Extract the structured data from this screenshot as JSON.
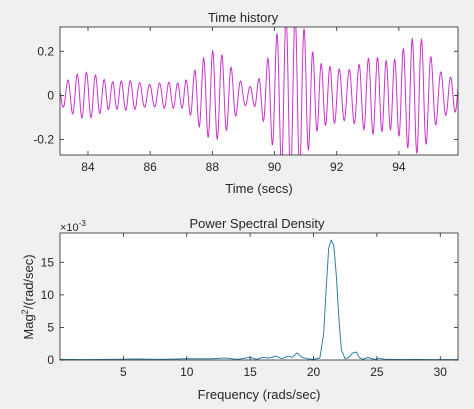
{
  "colors": {
    "time_series": "#cc33cc",
    "psd_series": "#2f7fa8",
    "axes_bg": "#ffffff",
    "figure_bg": "#f0f0f0"
  },
  "chart_data": [
    {
      "type": "line",
      "title": "Time history",
      "xlabel": "Time (secs)",
      "ylabel": "",
      "xlim": [
        83.1,
        95.9
      ],
      "ylim": [
        -0.27,
        0.31
      ],
      "xticks": [
        84,
        86,
        88,
        90,
        92,
        94
      ],
      "yticks": [
        -0.2,
        0,
        0.2
      ],
      "xtick_labels": [
        "84",
        "86",
        "88",
        "90",
        "92",
        "94"
      ],
      "ytick_labels": [
        "-0.2",
        "0",
        "0.2"
      ],
      "grid": false,
      "signal": {
        "components": [
          {
            "amplitude": 0.1,
            "omega": 21.5,
            "phase": 0.3
          },
          {
            "amplitude": 0.045,
            "omega": 23.5,
            "phase": 1.1
          },
          {
            "amplitude": 0.035,
            "omega": 18.7,
            "phase": 2.0
          }
        ],
        "envelope": [
          [
            83.1,
            0.7
          ],
          [
            85.5,
            0.55
          ],
          [
            87.0,
            0.6
          ],
          [
            88.0,
            1.2
          ],
          [
            89.5,
            1.9
          ],
          [
            91.0,
            2.2
          ],
          [
            91.8,
            1.6
          ],
          [
            92.8,
            1.2
          ],
          [
            94.0,
            1.5
          ],
          [
            94.8,
            1.9
          ],
          [
            95.9,
            1.2
          ]
        ]
      }
    },
    {
      "type": "line",
      "title": "Power Spectral Density",
      "xlabel": "Frequency (rads/sec)",
      "ylabel_main": "Mag",
      "ylabel_sup": "2",
      "ylabel_rest": "/(rad/sec)",
      "y_multiplier_base": "×10",
      "y_multiplier_exp": "-3",
      "xlim": [
        0,
        31.4
      ],
      "ylim": [
        0,
        0.0195
      ],
      "xticks": [
        5,
        10,
        15,
        20,
        25,
        30
      ],
      "yticks": [
        0,
        0.005,
        0.01,
        0.015
      ],
      "xtick_labels": [
        "5",
        "10",
        "15",
        "20",
        "25",
        "30"
      ],
      "ytick_labels": [
        "0",
        "5",
        "10",
        "15"
      ],
      "grid": false,
      "x": [
        0,
        2,
        4,
        6,
        8,
        10,
        12,
        13,
        14,
        15,
        15.5,
        16,
        16.5,
        17,
        17.5,
        18,
        18.3,
        18.7,
        19.1,
        19.5,
        20,
        20.5,
        20.8,
        21.0,
        21.2,
        21.4,
        21.6,
        21.8,
        22.0,
        22.2,
        22.5,
        22.8,
        23.1,
        23.4,
        23.6,
        23.9,
        24.3,
        24.8,
        25.2,
        25.6,
        26.0,
        27,
        28,
        29,
        30,
        31.4
      ],
      "y": [
        0.0001,
        5e-05,
        0.0001,
        0.00015,
        0.0001,
        0.0002,
        0.0002,
        0.0003,
        0.0001,
        0.0004,
        0.0001,
        0.0004,
        0.0003,
        0.0006,
        0.0002,
        0.0006,
        0.0004,
        0.0011,
        0.0004,
        0.0002,
        0.0001,
        0.0003,
        0.004,
        0.011,
        0.0172,
        0.0184,
        0.0176,
        0.013,
        0.0065,
        0.0015,
        0.0002,
        0.0004,
        0.0011,
        0.0012,
        0.0004,
        0.0001,
        0.0004,
        0.0001,
        0.0003,
        0.0001,
        0.0001,
        5e-05,
        0.0001,
        5e-05,
        5e-05,
        5e-05
      ]
    }
  ]
}
